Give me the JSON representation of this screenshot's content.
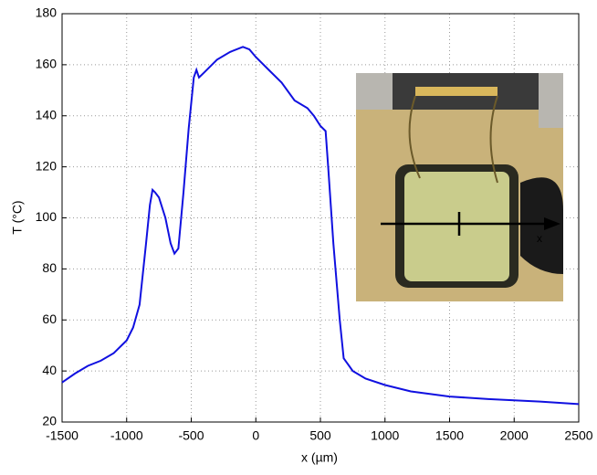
{
  "chart_data": {
    "type": "line",
    "xlabel": "x (µm)",
    "ylabel": "T (°C)",
    "x": [
      -1500,
      -1400,
      -1300,
      -1200,
      -1100,
      -1000,
      -950,
      -900,
      -850,
      -820,
      -800,
      -780,
      -750,
      -700,
      -660,
      -630,
      -600,
      -560,
      -520,
      -480,
      -460,
      -440,
      -400,
      -300,
      -200,
      -100,
      -50,
      0,
      100,
      200,
      300,
      400,
      450,
      500,
      540,
      560,
      600,
      650,
      680,
      750,
      850,
      1000,
      1200,
      1500,
      1800,
      2000,
      2200,
      2500
    ],
    "series": [
      {
        "color": "#1010e0",
        "values": [
          35.5,
          39,
          42,
          44,
          47,
          52,
          57,
          66,
          90,
          105,
          111,
          110,
          108,
          100,
          90,
          86,
          88,
          110,
          135,
          155,
          158,
          155,
          157,
          162,
          165,
          167,
          166,
          163,
          158,
          153,
          146,
          143,
          140,
          136,
          134,
          120,
          90,
          60,
          45,
          40,
          37,
          34.5,
          32,
          30,
          29,
          28.5,
          28,
          27
        ]
      }
    ],
    "xlim": [
      -1500,
      2500
    ],
    "xticks": [
      -1500,
      -1000,
      -500,
      0,
      500,
      1000,
      1500,
      2000,
      2500
    ],
    "ylim": [
      20,
      180
    ],
    "yticks": [
      20,
      40,
      60,
      80,
      100,
      120,
      140,
      160,
      180
    ],
    "grid": true,
    "inset_label": "x"
  }
}
